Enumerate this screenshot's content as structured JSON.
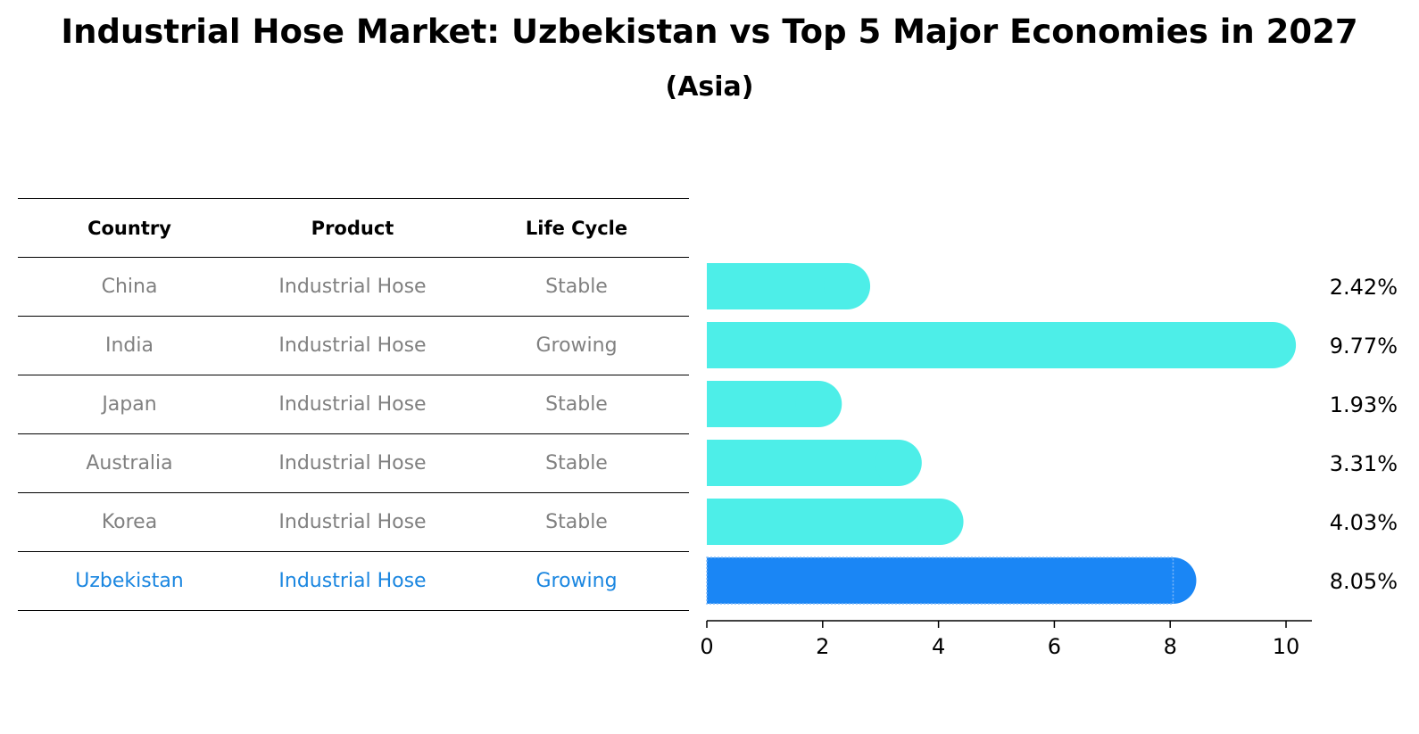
{
  "title": "Industrial Hose Market: Uzbekistan vs Top 5 Major Economies in 2027",
  "subtitle": "(Asia)",
  "table": {
    "headers": [
      "Country",
      "Product",
      "Life Cycle"
    ],
    "rows": [
      [
        "China",
        "Industrial Hose",
        "Stable"
      ],
      [
        "India",
        "Industrial Hose",
        "Growing"
      ],
      [
        "Japan",
        "Industrial Hose",
        "Stable"
      ],
      [
        "Australia",
        "Industrial Hose",
        "Stable"
      ],
      [
        "Korea",
        "Industrial Hose",
        "Stable"
      ],
      [
        "Uzbekistan",
        "Industrial Hose",
        "Growing"
      ]
    ],
    "highlight_row": 5
  },
  "colors": {
    "bar": "#4deee8",
    "highlight_bar": "#1a86f5",
    "highlight_text": "#1a86e0",
    "muted_text": "#808080"
  },
  "chart_data": {
    "type": "bar",
    "orientation": "horizontal",
    "categories": [
      "China",
      "India",
      "Japan",
      "Australia",
      "Korea",
      "Uzbekistan"
    ],
    "values": [
      2.42,
      9.77,
      1.93,
      3.31,
      4.03,
      8.05
    ],
    "value_labels": [
      "2.42%",
      "9.77%",
      "1.93%",
      "3.31%",
      "4.03%",
      "8.05%"
    ],
    "xlim": [
      0,
      10.2
    ],
    "xticks": [
      0,
      2,
      4,
      6,
      8,
      10
    ],
    "highlight_category": "Uzbekistan",
    "grid": false
  }
}
